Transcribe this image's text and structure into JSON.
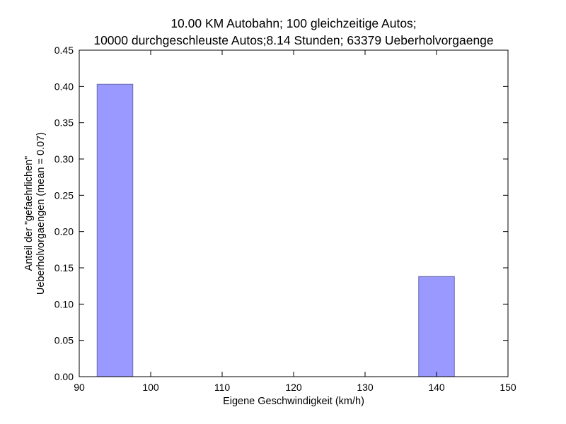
{
  "chart_data": {
    "type": "bar",
    "title_lines": [
      "10.00 KM Autobahn; 100 gleichzeitige Autos;",
      "10000 durchgeschleuste Autos;8.14 Stunden; 63379 Ueberholvorgaenge"
    ],
    "xlabel": "Eigene Geschwindigkeit (km/h)",
    "ylabel_lines": [
      "Anteil der \"gefaehrlichen\"",
      "Ueberholvorgaengen (mean = 0.07)"
    ],
    "xlim": [
      90,
      150
    ],
    "ylim": [
      0,
      0.45
    ],
    "xticks": [
      "90",
      "100",
      "110",
      "120",
      "130",
      "140",
      "150"
    ],
    "yticks": [
      "0.00",
      "0.05",
      "0.10",
      "0.15",
      "0.20",
      "0.25",
      "0.30",
      "0.35",
      "0.40",
      "0.45"
    ],
    "bar_width": 5,
    "bars": [
      {
        "x": 95,
        "value": 0.403
      },
      {
        "x": 140,
        "value": 0.138
      }
    ],
    "bar_color": "#9999ff",
    "bar_edge_color": "#6a6ab0",
    "grid": false
  }
}
